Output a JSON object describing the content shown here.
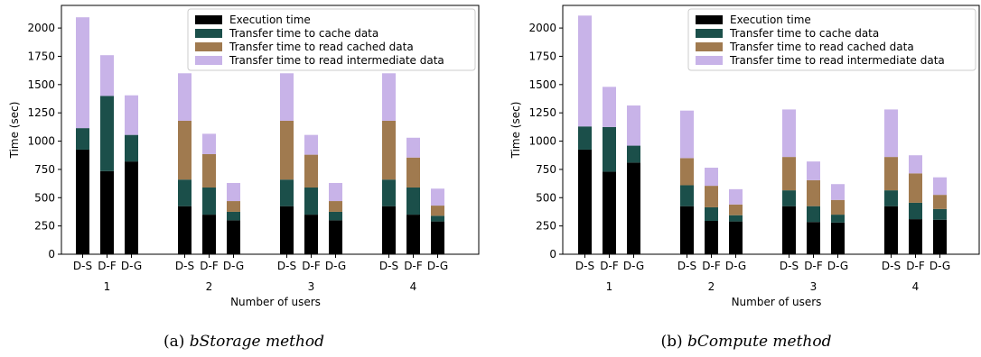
{
  "colors": {
    "execution": "#000000",
    "cache": "#1b4f4a",
    "read_cached": "#a07a4f",
    "intermediate": "#c8b3e8"
  },
  "chart_data": [
    {
      "type": "bar",
      "stacked": true,
      "caption_prefix": "(a)",
      "caption_title": "bStorage method",
      "xlabel": "Number of users",
      "ylabel": "Time (sec)",
      "ylim": [
        0,
        2200
      ],
      "yticks": [
        0,
        250,
        500,
        750,
        1000,
        1250,
        1500,
        1750,
        2000
      ],
      "groups": [
        "1",
        "2",
        "3",
        "4"
      ],
      "categories": [
        "D-S",
        "D-F",
        "D-G"
      ],
      "legend_position": "upper right",
      "series": [
        {
          "name": "Execution time",
          "values": [
            [
              925,
              735,
              820
            ],
            [
              425,
              350,
              300
            ],
            [
              425,
              350,
              300
            ],
            [
              425,
              350,
              290
            ]
          ]
        },
        {
          "name": "Transfer time to cache data",
          "values": [
            [
              190,
              665,
              235
            ],
            [
              235,
              240,
              75
            ],
            [
              235,
              240,
              75
            ],
            [
              235,
              240,
              50
            ]
          ]
        },
        {
          "name": "Transfer time to read cached data",
          "values": [
            [
              0,
              0,
              0
            ],
            [
              520,
              295,
              95
            ],
            [
              520,
              290,
              95
            ],
            [
              520,
              265,
              90
            ]
          ]
        },
        {
          "name": "Transfer time to read intermediate data",
          "values": [
            [
              980,
              360,
              350
            ],
            [
              420,
              180,
              160
            ],
            [
              420,
              175,
              160
            ],
            [
              420,
              175,
              150
            ]
          ]
        }
      ]
    },
    {
      "type": "bar",
      "stacked": true,
      "caption_prefix": "(b)",
      "caption_title": "bCompute method",
      "xlabel": "Number of users",
      "ylabel": "Time (sec)",
      "ylim": [
        0,
        2200
      ],
      "yticks": [
        0,
        250,
        500,
        750,
        1000,
        1250,
        1500,
        1750,
        2000
      ],
      "groups": [
        "1",
        "2",
        "3",
        "4"
      ],
      "categories": [
        "D-S",
        "D-F",
        "D-G"
      ],
      "legend_position": "upper right",
      "series": [
        {
          "name": "Execution time",
          "values": [
            [
              925,
              730,
              810
            ],
            [
              425,
              295,
              290
            ],
            [
              425,
              285,
              280
            ],
            [
              425,
              310,
              305
            ]
          ]
        },
        {
          "name": "Transfer time to cache data",
          "values": [
            [
              205,
              395,
              150
            ],
            [
              185,
              120,
              55
            ],
            [
              140,
              140,
              70
            ],
            [
              140,
              145,
              95
            ]
          ]
        },
        {
          "name": "Transfer time to read cached data",
          "values": [
            [
              0,
              0,
              0
            ],
            [
              240,
              190,
              95
            ],
            [
              295,
              230,
              130
            ],
            [
              295,
              260,
              125
            ]
          ]
        },
        {
          "name": "Transfer time to read intermediate data",
          "values": [
            [
              980,
              355,
              355
            ],
            [
              420,
              160,
              135
            ],
            [
              420,
              165,
              140
            ],
            [
              420,
              160,
              155
            ]
          ]
        }
      ]
    }
  ]
}
